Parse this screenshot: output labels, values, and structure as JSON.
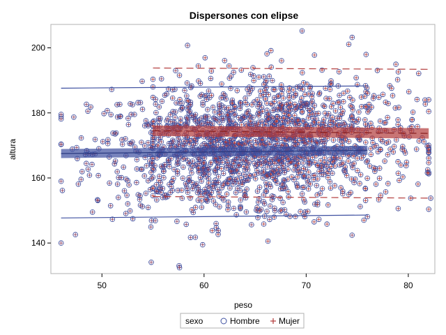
{
  "chart_data": {
    "type": "scatter",
    "title": "Dispersones con elipse",
    "xlabel": "peso",
    "ylabel": "altura",
    "xlim": [
      45,
      82.6
    ],
    "ylim": [
      130.6,
      207.2
    ],
    "xticks": [
      50,
      60,
      70,
      80
    ],
    "yticks": [
      140,
      160,
      180,
      200
    ],
    "grid": false,
    "legend": {
      "position": "bottom",
      "title": "sexo",
      "entries": [
        {
          "name": "Hombre",
          "marker": "circle",
          "color": "#3d4fa0"
        },
        {
          "name": "Mujer",
          "marker": "plus",
          "color": "#b23a3a"
        }
      ]
    },
    "series": [
      {
        "name": "Hombre",
        "color": "#3d4fa0",
        "x_range": [
          46,
          76
        ],
        "mean_line": {
          "x": [
            46,
            76
          ],
          "y": [
            167.5,
            168.5
          ]
        },
        "prediction_band": {
          "lower": [
            147.7,
            148.6
          ],
          "upper": [
            187.6,
            188.3
          ]
        },
        "confidence_band_halfwidth": 1.4,
        "point_distribution": {
          "x_mean": 61,
          "x_sd": 6,
          "y_mean": 168,
          "y_sd": 10,
          "n": 900
        }
      },
      {
        "name": "Mujer",
        "color": "#b23a3a",
        "x_range": [
          55,
          82
        ],
        "mean_line": {
          "x": [
            55,
            82
          ],
          "y": [
            174.5,
            173.7
          ]
        },
        "prediction_band": {
          "lower": [
            154.3,
            153.8
          ],
          "upper": [
            193.8,
            193.4
          ]
        },
        "confidence_band_halfwidth": 1.6,
        "point_distribution": {
          "x_mean": 69,
          "x_sd": 6,
          "y_mean": 172,
          "y_sd": 10,
          "n": 900
        }
      }
    ],
    "notable_points": [
      {
        "x": 69.6,
        "y": 205.2
      },
      {
        "x": 57.6,
        "y": 132.4
      },
      {
        "x": 46.0,
        "y": 140.0
      },
      {
        "x": 82.2,
        "y": 153.8
      },
      {
        "x": 74.5,
        "y": 203.2
      },
      {
        "x": 61.2,
        "y": 144.7
      }
    ]
  }
}
